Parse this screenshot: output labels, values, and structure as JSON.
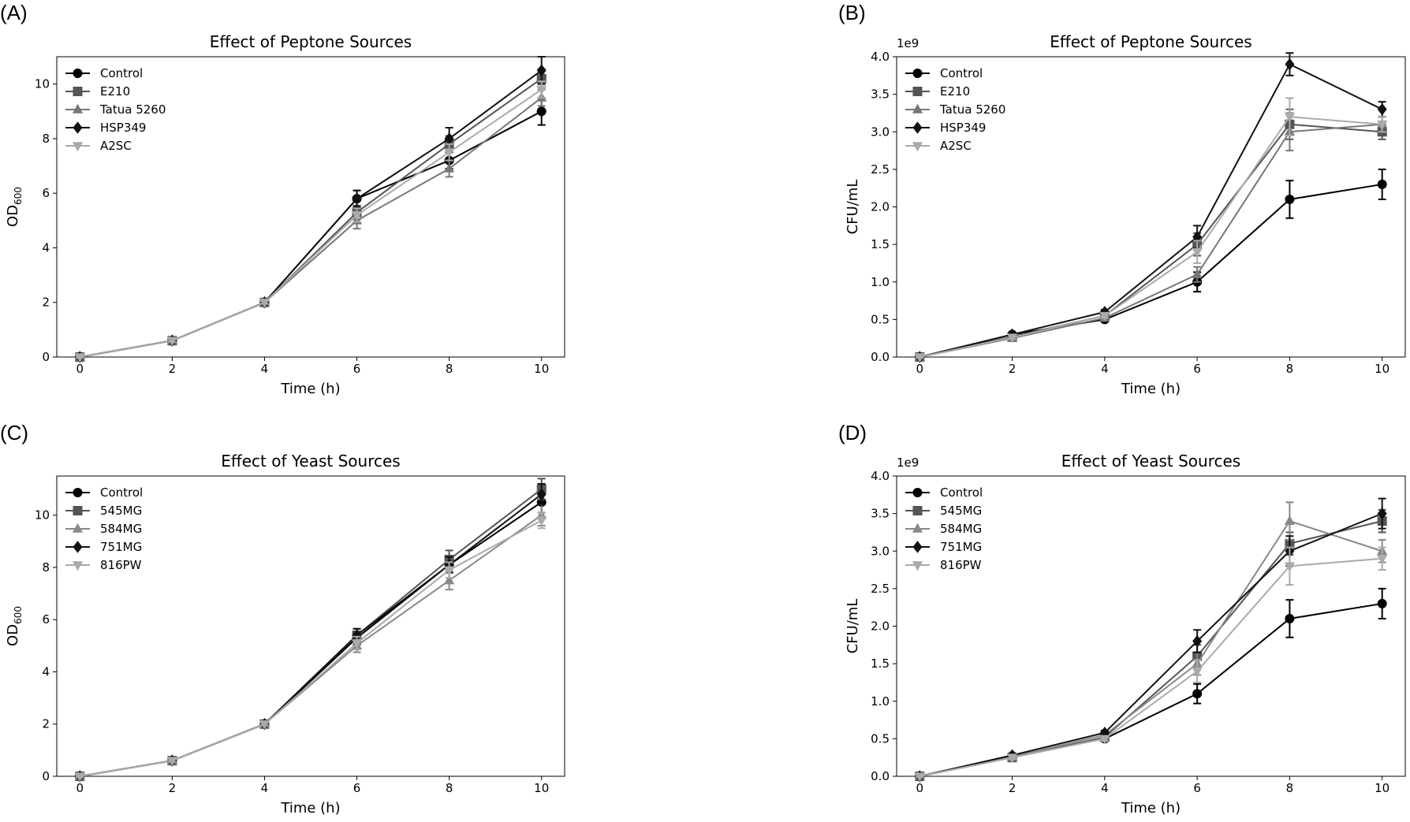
{
  "chart_data": [
    {
      "type": "line",
      "panel_label": "(A)",
      "title": "Effect of Peptone Sources",
      "xlabel": "Time (h)",
      "ylabel": "OD",
      "ylabel_sub": "600",
      "x": [
        0,
        2,
        4,
        6,
        8,
        10
      ],
      "xlim": [
        -0.5,
        10.5
      ],
      "xticks": [
        0,
        2,
        4,
        6,
        8,
        10
      ],
      "ylim": [
        0,
        11
      ],
      "yticks": [
        0,
        2,
        4,
        6,
        8,
        10
      ],
      "legend": "upper left",
      "series": [
        {
          "name": "Control",
          "color": "#000000",
          "marker": "o",
          "values": [
            0,
            0.6,
            2.0,
            5.8,
            7.2,
            9.0
          ],
          "errors": [
            0.03,
            0.05,
            0.05,
            0.3,
            0.3,
            0.5
          ]
        },
        {
          "name": "E210",
          "color": "#555555",
          "marker": "s",
          "values": [
            0,
            0.6,
            2.0,
            5.3,
            7.8,
            10.2
          ],
          "errors": [
            0.03,
            0.05,
            0.05,
            0.25,
            0.3,
            0.35
          ]
        },
        {
          "name": "Tatua 5260",
          "color": "#777777",
          "marker": "^",
          "values": [
            0,
            0.6,
            2.0,
            5.0,
            6.9,
            9.5
          ],
          "errors": [
            0.03,
            0.05,
            0.05,
            0.3,
            0.3,
            0.3
          ]
        },
        {
          "name": "HSP349",
          "color": "#111111",
          "marker": "D",
          "values": [
            0,
            0.6,
            2.0,
            5.8,
            8.0,
            10.5
          ],
          "errors": [
            0.03,
            0.05,
            0.05,
            0.3,
            0.4,
            0.5
          ]
        },
        {
          "name": "A2SC",
          "color": "#aaaaaa",
          "marker": "v",
          "values": [
            0,
            0.6,
            2.0,
            5.2,
            7.5,
            9.8
          ],
          "errors": [
            0.03,
            0.05,
            0.05,
            0.25,
            0.3,
            0.3
          ]
        }
      ]
    },
    {
      "type": "line",
      "panel_label": "(B)",
      "title": "Effect of Peptone Sources",
      "xlabel": "Time (h)",
      "ylabel": "CFU/mL",
      "offset_text": "1e9",
      "x": [
        0,
        2,
        4,
        6,
        8,
        10
      ],
      "xlim": [
        -0.5,
        10.5
      ],
      "xticks": [
        0,
        2,
        4,
        6,
        8,
        10
      ],
      "ylim": [
        0,
        4
      ],
      "yticks": [
        {
          "value": 0,
          "label": "0.0"
        },
        0.5,
        {
          "value": 1,
          "label": "1.0"
        },
        1.5,
        {
          "value": 2,
          "label": "2.0"
        },
        2.5,
        {
          "value": 3,
          "label": "3.0"
        },
        3.5,
        {
          "value": 4,
          "label": "4.0"
        }
      ],
      "legend": "upper left",
      "series": [
        {
          "name": "Control",
          "color": "#000000",
          "marker": "o",
          "values": [
            0,
            0.3,
            0.5,
            1.0,
            2.1,
            2.3
          ],
          "errors": [
            0.01,
            0.02,
            0.03,
            0.13,
            0.25,
            0.2
          ]
        },
        {
          "name": "E210",
          "color": "#555555",
          "marker": "s",
          "values": [
            0,
            0.27,
            0.55,
            1.5,
            3.1,
            3.0
          ],
          "errors": [
            0.01,
            0.02,
            0.03,
            0.15,
            0.2,
            0.1
          ]
        },
        {
          "name": "Tatua 5260",
          "color": "#777777",
          "marker": "^",
          "values": [
            0,
            0.25,
            0.52,
            1.1,
            3.0,
            3.1
          ],
          "errors": [
            0.01,
            0.02,
            0.03,
            0.1,
            0.25,
            0.1
          ]
        },
        {
          "name": "HSP349",
          "color": "#111111",
          "marker": "D",
          "values": [
            0,
            0.3,
            0.6,
            1.6,
            3.9,
            3.3
          ],
          "errors": [
            0.01,
            0.02,
            0.03,
            0.15,
            0.15,
            0.1
          ]
        },
        {
          "name": "A2SC",
          "color": "#aaaaaa",
          "marker": "v",
          "values": [
            0,
            0.26,
            0.55,
            1.4,
            3.2,
            3.1
          ],
          "errors": [
            0.01,
            0.02,
            0.03,
            0.15,
            0.25,
            0.1
          ]
        }
      ]
    },
    {
      "type": "line",
      "panel_label": "(C)",
      "title": "Effect of Yeast Sources",
      "xlabel": "Time (h)",
      "ylabel": "OD",
      "ylabel_sub": "600",
      "x": [
        0,
        2,
        4,
        6,
        8,
        10
      ],
      "xlim": [
        -0.5,
        10.5
      ],
      "xticks": [
        0,
        2,
        4,
        6,
        8,
        10
      ],
      "ylim": [
        0,
        11.5
      ],
      "yticks": [
        0,
        2,
        4,
        6,
        8,
        10
      ],
      "legend": "upper left",
      "series": [
        {
          "name": "Control",
          "color": "#000000",
          "marker": "o",
          "values": [
            0,
            0.6,
            2.0,
            5.3,
            8.1,
            10.5
          ],
          "errors": [
            0.03,
            0.05,
            0.05,
            0.25,
            0.3,
            0.4
          ]
        },
        {
          "name": "545MG",
          "color": "#555555",
          "marker": "s",
          "values": [
            0,
            0.6,
            2.0,
            5.4,
            8.3,
            11.0
          ],
          "errors": [
            0.03,
            0.05,
            0.05,
            0.25,
            0.35,
            0.4
          ]
        },
        {
          "name": "584MG",
          "color": "#888888",
          "marker": "^",
          "values": [
            0,
            0.6,
            2.0,
            5.0,
            7.5,
            10.0
          ],
          "errors": [
            0.03,
            0.05,
            0.05,
            0.25,
            0.35,
            0.4
          ]
        },
        {
          "name": "751MG",
          "color": "#111111",
          "marker": "D",
          "values": [
            0,
            0.6,
            2.0,
            5.4,
            8.1,
            10.8
          ],
          "errors": [
            0.03,
            0.05,
            0.05,
            0.25,
            0.3,
            0.4
          ]
        },
        {
          "name": "816PW",
          "color": "#aaaaaa",
          "marker": "v",
          "values": [
            0,
            0.6,
            2.0,
            5.1,
            7.9,
            9.8
          ],
          "errors": [
            0.03,
            0.05,
            0.05,
            0.25,
            0.3,
            0.3
          ]
        }
      ]
    },
    {
      "type": "line",
      "panel_label": "(D)",
      "title": "Effect of Yeast Sources",
      "xlabel": "Time (h)",
      "ylabel": "CFU/mL",
      "offset_text": "1e9",
      "x": [
        0,
        2,
        4,
        6,
        8,
        10
      ],
      "xlim": [
        -0.5,
        10.5
      ],
      "xticks": [
        0,
        2,
        4,
        6,
        8,
        10
      ],
      "ylim": [
        0,
        4
      ],
      "yticks": [
        {
          "value": 0,
          "label": "0.0"
        },
        0.5,
        {
          "value": 1,
          "label": "1.0"
        },
        1.5,
        {
          "value": 2,
          "label": "2.0"
        },
        2.5,
        {
          "value": 3,
          "label": "3.0"
        },
        3.5,
        {
          "value": 4,
          "label": "4.0"
        }
      ],
      "legend": "upper left",
      "series": [
        {
          "name": "Control",
          "color": "#000000",
          "marker": "o",
          "values": [
            0,
            0.27,
            0.5,
            1.1,
            2.1,
            2.3
          ],
          "errors": [
            0.01,
            0.02,
            0.03,
            0.13,
            0.25,
            0.2
          ]
        },
        {
          "name": "545MG",
          "color": "#555555",
          "marker": "s",
          "values": [
            0,
            0.25,
            0.52,
            1.6,
            3.1,
            3.4
          ],
          "errors": [
            0.01,
            0.02,
            0.03,
            0.15,
            0.15,
            0.15
          ]
        },
        {
          "name": "584MG",
          "color": "#888888",
          "marker": "^",
          "values": [
            0,
            0.26,
            0.55,
            1.5,
            3.4,
            3.0
          ],
          "errors": [
            0.01,
            0.02,
            0.03,
            0.15,
            0.25,
            0.15
          ]
        },
        {
          "name": "751MG",
          "color": "#111111",
          "marker": "D",
          "values": [
            0,
            0.28,
            0.58,
            1.8,
            3.0,
            3.5
          ],
          "errors": [
            0.01,
            0.02,
            0.03,
            0.15,
            0.2,
            0.2
          ]
        },
        {
          "name": "816PW",
          "color": "#aaaaaa",
          "marker": "v",
          "values": [
            0,
            0.25,
            0.5,
            1.4,
            2.8,
            2.9
          ],
          "errors": [
            0.01,
            0.02,
            0.03,
            0.15,
            0.25,
            0.15
          ]
        }
      ]
    }
  ]
}
